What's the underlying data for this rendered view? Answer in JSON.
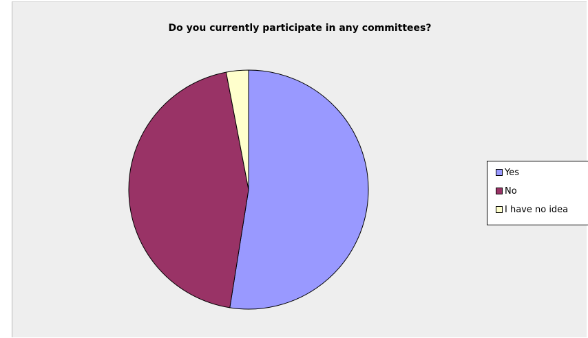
{
  "chart_data": {
    "type": "pie",
    "title": "Do you currently participate in any committees?",
    "categories": [
      "Yes",
      "No",
      "I have no idea"
    ],
    "values": [
      52.5,
      44.5,
      3.0
    ],
    "colors": [
      "#9999ff",
      "#993366",
      "#ffffcc"
    ],
    "legend_position": "right",
    "start_angle_deg": 0,
    "direction": "clockwise",
    "background": "#eeeeee"
  }
}
